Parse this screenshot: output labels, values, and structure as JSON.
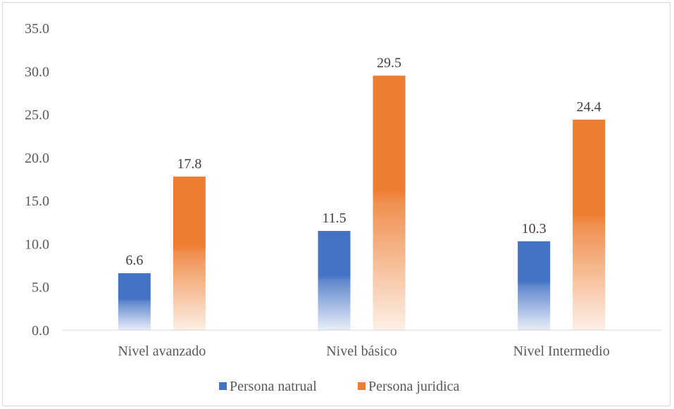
{
  "chart_data": {
    "type": "bar",
    "categories": [
      "Nivel avanzado",
      "Nivel básico",
      "Nivel Intermedio"
    ],
    "series": [
      {
        "name": "Persona natrual",
        "values": [
          6.6,
          11.5,
          10.3
        ],
        "labels": [
          "6.6",
          "11.5",
          "10.3"
        ],
        "color": "#4472C4"
      },
      {
        "name": "Persona juridica",
        "values": [
          17.8,
          29.5,
          24.4
        ],
        "labels": [
          "17.8",
          "29.5",
          "24.4"
        ],
        "color": "#ED7D31"
      }
    ],
    "yticks": [
      "0.0",
      "5.0",
      "10.0",
      "15.0",
      "20.0",
      "25.0",
      "30.0",
      "35.0"
    ],
    "ylim": [
      0,
      35
    ],
    "grid": false,
    "legend_position": "bottom"
  }
}
